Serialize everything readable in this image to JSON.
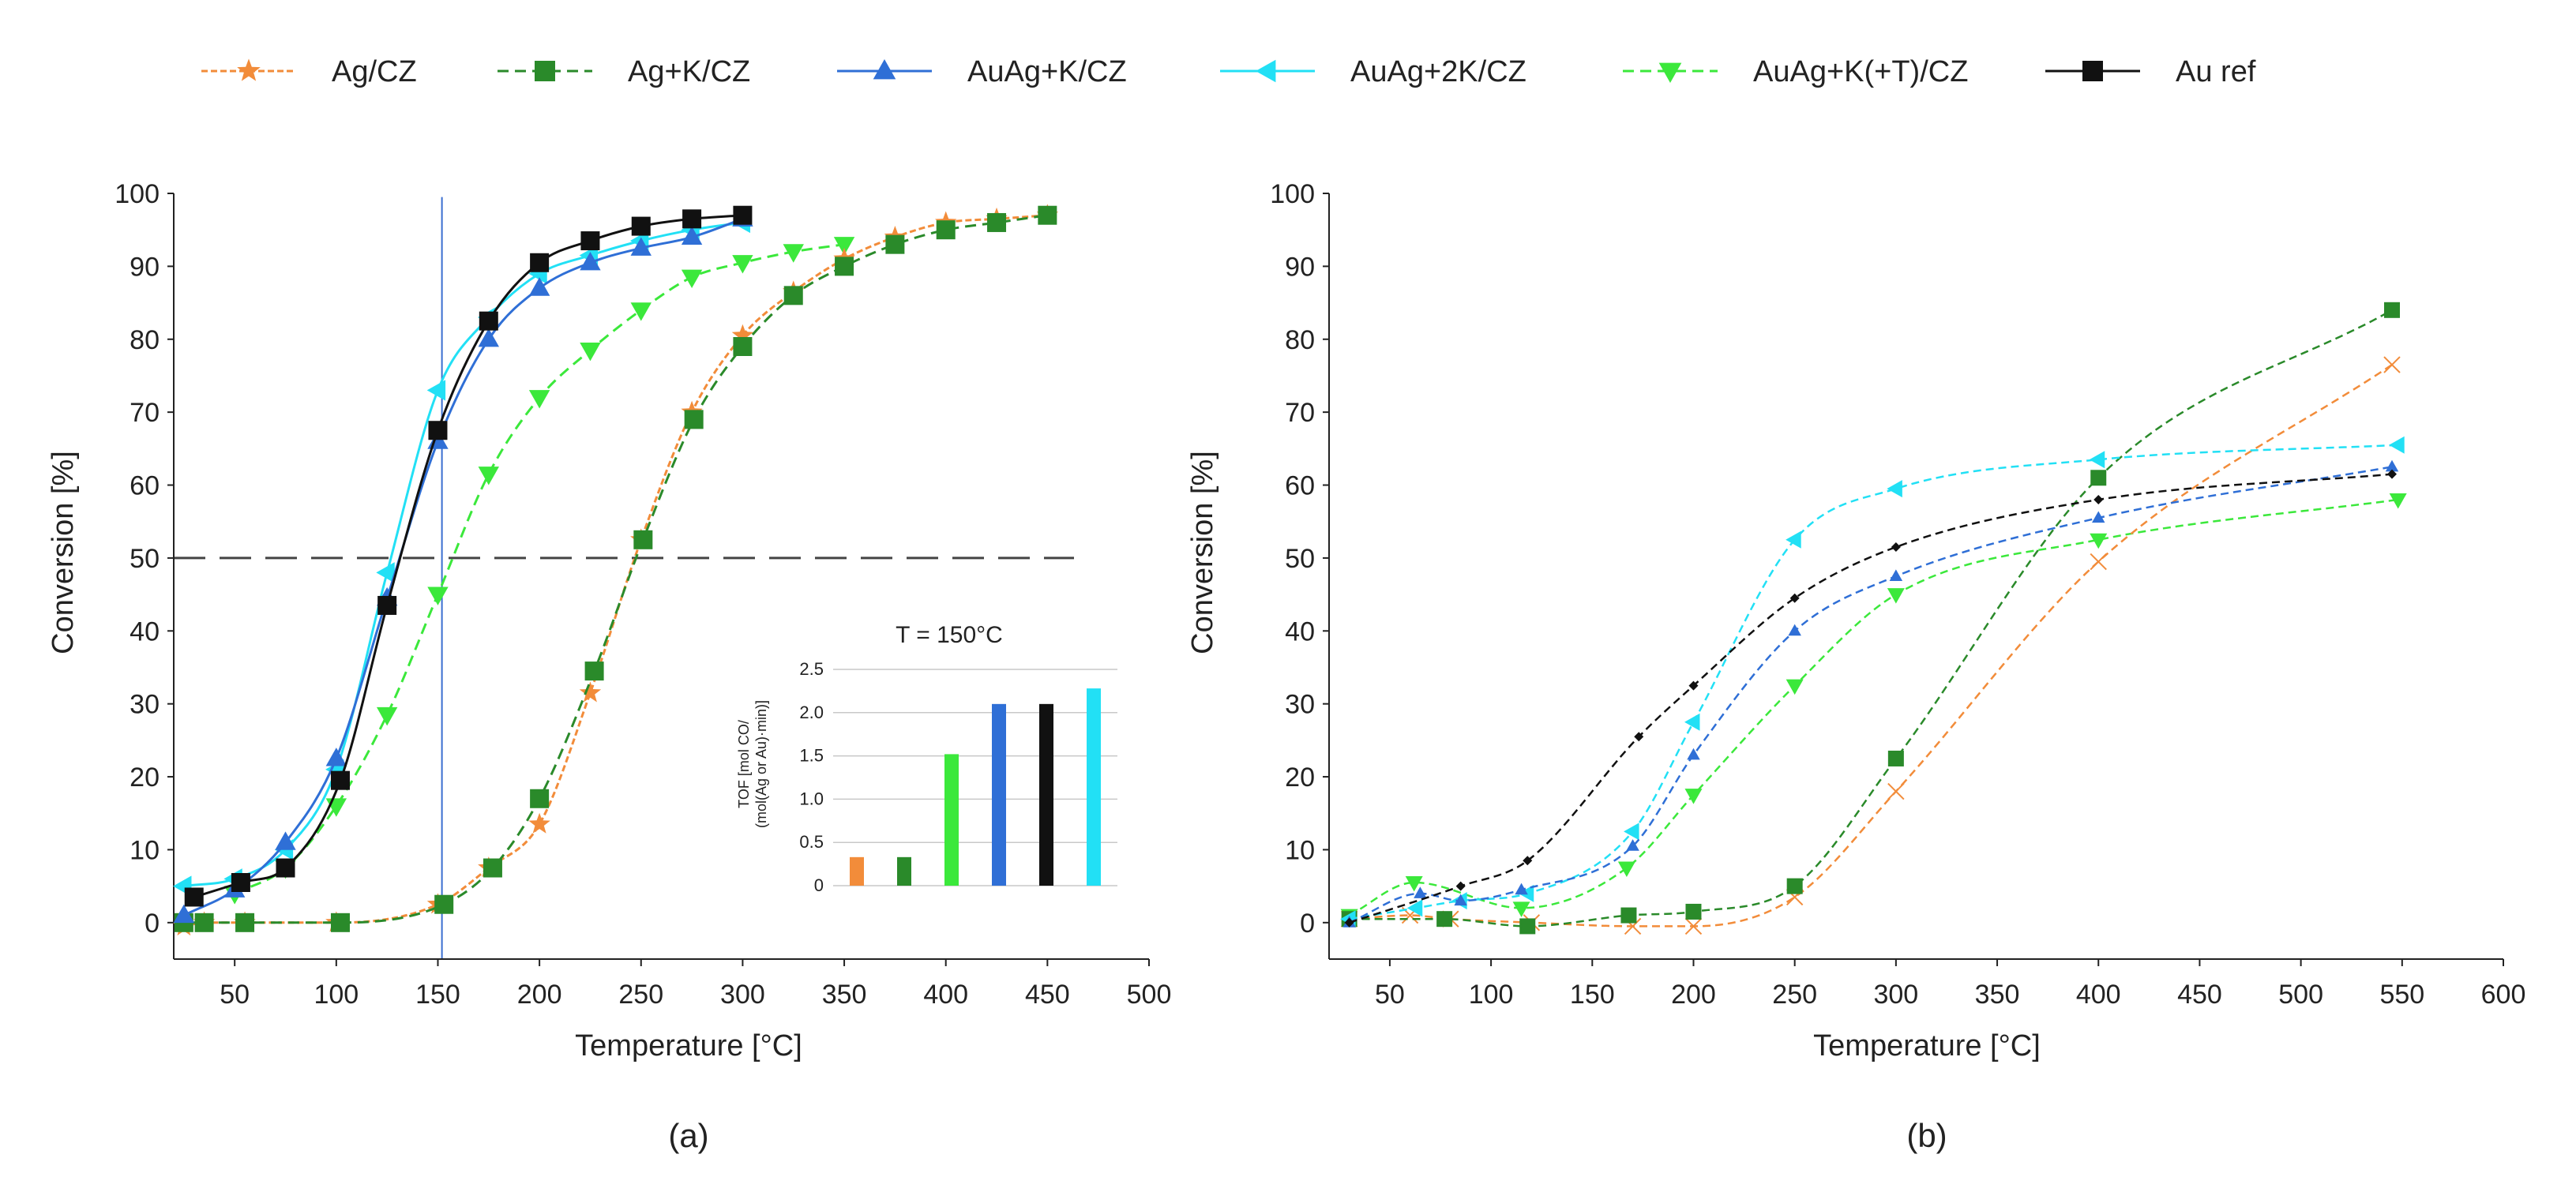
{
  "legend": [
    {
      "key": "Ag",
      "label": "Ag/CZ",
      "color": "#f28c3a",
      "marker": "star",
      "dash": "8,4"
    },
    {
      "key": "AgK",
      "label": "Ag+K/CZ",
      "color": "#2a8a2a",
      "marker": "square",
      "dash": "14,8"
    },
    {
      "key": "AuAgK",
      "label": "AuAg+K/CZ",
      "color": "#2f6fd6",
      "marker": "triangle-up",
      "dash": ""
    },
    {
      "key": "AuAg2K",
      "label": "AuAg+2K/CZ",
      "color": "#22e0f5",
      "marker": "triangle-left",
      "dash": ""
    },
    {
      "key": "AuAgKT",
      "label": "AuAg+K(+T)/CZ",
      "color": "#3be83b",
      "marker": "triangle-down",
      "dash": "14,8"
    },
    {
      "key": "Au",
      "label": "Au ref",
      "color": "#111111",
      "marker": "square",
      "dash": ""
    }
  ],
  "chart_data": [
    {
      "type": "line",
      "panel_label": "(a)",
      "xlabel": "Temperature [°C]",
      "ylabel": "Conversion [%]",
      "xlim": [
        20,
        500
      ],
      "ylim": [
        -5,
        100
      ],
      "xticks": [
        50,
        100,
        150,
        200,
        250,
        300,
        350,
        400,
        450,
        500
      ],
      "yticks": [
        0,
        10,
        20,
        30,
        40,
        50,
        60,
        70,
        80,
        90,
        100
      ],
      "reference_lines": {
        "horizontal_y": 50,
        "vertical_x": 152
      },
      "series": [
        {
          "key": "Ag",
          "name": "Ag/CZ",
          "x": [
            25,
            35,
            55,
            100,
            150,
            175,
            200,
            225,
            250,
            275,
            300,
            325,
            350,
            375,
            400,
            425,
            450
          ],
          "y": [
            -0.5,
            0,
            0,
            0,
            2.5,
            7.5,
            13.5,
            31.5,
            52.5,
            70,
            80.5,
            86.5,
            91,
            94,
            96,
            96.5,
            97
          ]
        },
        {
          "key": "AgK",
          "name": "Ag+K/CZ",
          "x": [
            25,
            35,
            55,
            102,
            153,
            177,
            200,
            227,
            251,
            276,
            300,
            325,
            350,
            375,
            400,
            425,
            450
          ],
          "y": [
            0,
            0,
            0,
            0,
            2.5,
            7.5,
            17,
            34.5,
            52.5,
            69,
            79,
            86,
            90,
            93,
            95,
            96,
            97
          ]
        },
        {
          "key": "AuAgK",
          "name": "AuAg+K/CZ",
          "x": [
            25,
            50,
            75,
            100,
            125,
            150,
            175,
            200,
            225,
            250,
            275,
            300
          ],
          "y": [
            1,
            4.5,
            11,
            22.5,
            44.5,
            66,
            80,
            87,
            90.5,
            92.5,
            94,
            96.5
          ]
        },
        {
          "key": "AuAg2K",
          "name": "AuAg+2K/CZ",
          "x": [
            25,
            50,
            75,
            100,
            125,
            150,
            175,
            200,
            225,
            250,
            275,
            300
          ],
          "y": [
            5,
            6,
            10,
            21,
            48,
            73,
            83,
            89,
            91.5,
            93.5,
            95,
            96
          ]
        },
        {
          "key": "AuAgKT",
          "name": "AuAg+K(+T)/CZ",
          "x": [
            50,
            75,
            100,
            125,
            150,
            175,
            200,
            225,
            250,
            275,
            300,
            325,
            350
          ],
          "y": [
            4,
            7.5,
            16,
            28.5,
            45,
            61.5,
            72,
            78.5,
            84,
            88.5,
            90.5,
            92,
            93
          ]
        },
        {
          "key": "Au",
          "name": "Au ref",
          "x": [
            30,
            53,
            75,
            102,
            125,
            150,
            175,
            200,
            225,
            250,
            275,
            300
          ],
          "y": [
            3.5,
            5.5,
            7.5,
            19.5,
            43.5,
            67.5,
            82.5,
            90.5,
            93.5,
            95.5,
            96.5,
            97
          ]
        }
      ],
      "inset": {
        "type": "bar",
        "title": "T = 150°C",
        "ylabel_line1": "TOF [mol CO/",
        "ylabel_line2": "(mol(Ag or Au)·min)]",
        "ylim": [
          0,
          2.5
        ],
        "yticks": [
          "0",
          "0.5",
          "1.0",
          "1.5",
          "2.0",
          "2.5"
        ],
        "bars": [
          {
            "key": "Ag",
            "value": 0.33
          },
          {
            "key": "AgK",
            "value": 0.33
          },
          {
            "key": "AuAgKT",
            "value": 1.52
          },
          {
            "key": "AuAgK",
            "value": 2.1
          },
          {
            "key": "Au",
            "value": 2.1
          },
          {
            "key": "AuAg2K",
            "value": 2.28
          }
        ]
      }
    },
    {
      "type": "line",
      "panel_label": "(b)",
      "xlabel": "Temperature [°C]",
      "ylabel": "Conversion [%]",
      "xlim": [
        20,
        600
      ],
      "ylim": [
        -5,
        100
      ],
      "xticks": [
        50,
        100,
        150,
        200,
        250,
        300,
        350,
        400,
        450,
        500,
        550,
        600
      ],
      "yticks": [
        0,
        10,
        20,
        30,
        40,
        50,
        60,
        70,
        80,
        90,
        100
      ],
      "series": [
        {
          "key": "Ag",
          "name": "Ag/CZ",
          "x": [
            30,
            60,
            80,
            120,
            170,
            200,
            250,
            300,
            400,
            545
          ],
          "y": [
            0.5,
            1,
            0.5,
            0,
            -0.5,
            -0.5,
            3.5,
            18,
            49.5,
            76.5
          ]
        },
        {
          "key": "AgK",
          "name": "Ag+K/CZ",
          "x": [
            30,
            77,
            118,
            168,
            200,
            250,
            300,
            400,
            545
          ],
          "y": [
            0.5,
            0.5,
            -0.5,
            1,
            1.5,
            5,
            22.5,
            61,
            84
          ]
        },
        {
          "key": "AuAgK",
          "name": "AuAg+K/CZ",
          "x": [
            30,
            65,
            85,
            115,
            170,
            200,
            250,
            300,
            400,
            545
          ],
          "y": [
            0,
            4,
            3,
            4.5,
            10.5,
            23,
            40,
            47.5,
            55.5,
            62.5
          ]
        },
        {
          "key": "AuAg2K",
          "name": "AuAg+2K/CZ",
          "x": [
            30,
            63,
            85,
            118,
            170,
            200,
            250,
            300,
            400,
            548
          ],
          "y": [
            0.5,
            2,
            3,
            4,
            12.5,
            27.5,
            52.5,
            59.5,
            63.5,
            65.5
          ]
        },
        {
          "key": "AuAgKT",
          "name": "AuAg+K(+T)/CZ",
          "x": [
            30,
            62,
            115,
            167,
            200,
            250,
            300,
            400,
            548
          ],
          "y": [
            1,
            5.5,
            2,
            7.5,
            17.5,
            32.5,
            45,
            52.5,
            58
          ]
        },
        {
          "key": "Au",
          "name": "Au ref",
          "x": [
            30,
            85,
            118,
            173,
            200,
            250,
            300,
            400,
            545
          ],
          "y": [
            0,
            5,
            8.5,
            25.5,
            32.5,
            44.5,
            51.5,
            58,
            61.5
          ]
        }
      ]
    }
  ]
}
